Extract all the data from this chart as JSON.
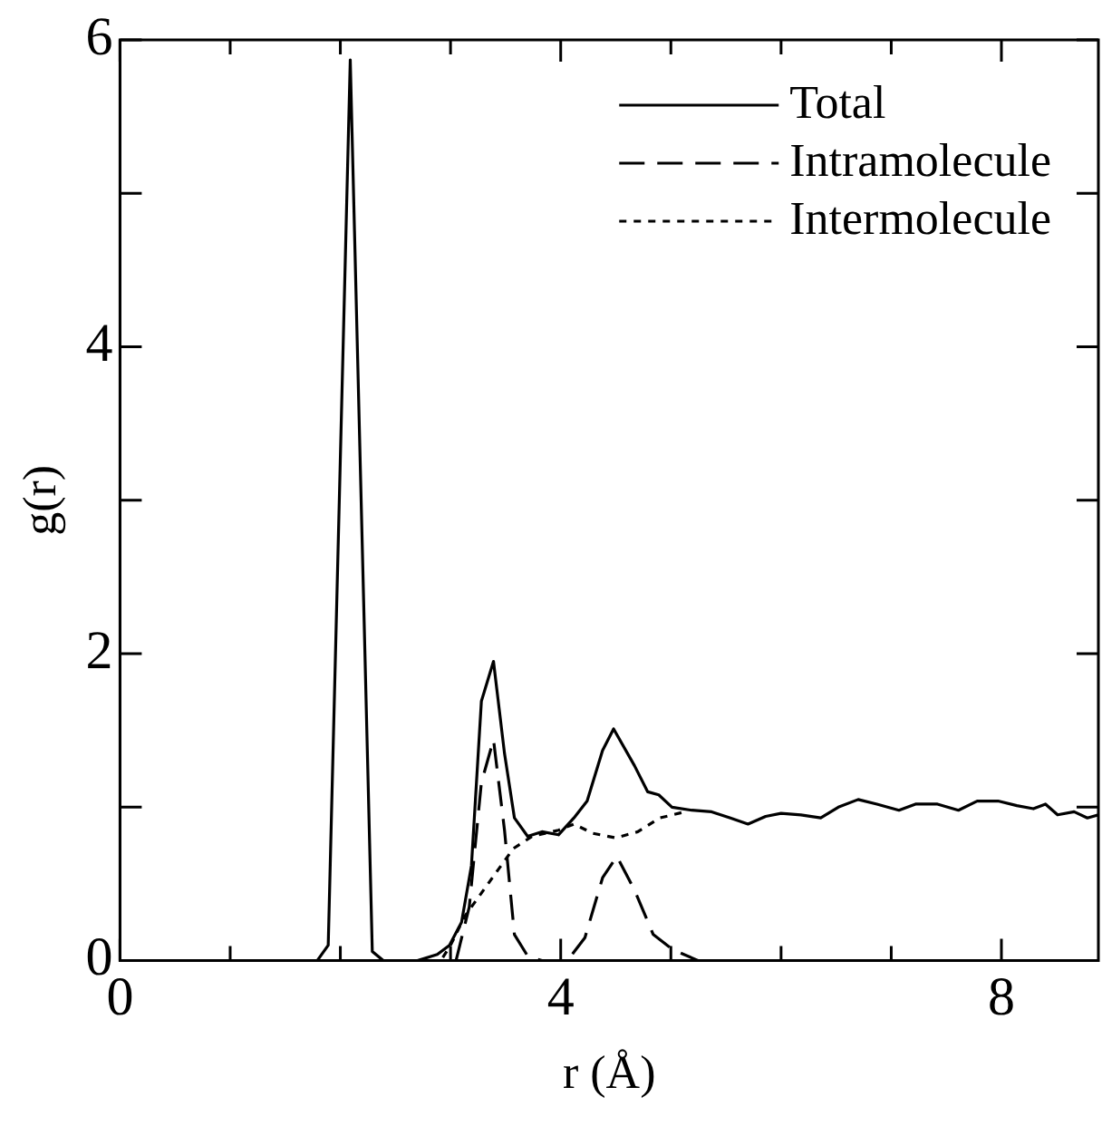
{
  "chart_data": {
    "type": "line",
    "xlabel": "r (Å)",
    "ylabel": "g(r)",
    "xlim": [
      0,
      8.88
    ],
    "ylim": [
      0,
      6
    ],
    "xticks": [
      0,
      {
        "value": 1,
        "label": null
      },
      {
        "value": 2,
        "label": null
      },
      {
        "value": 3,
        "label": null
      },
      4,
      {
        "value": 5,
        "label": null
      },
      {
        "value": 6,
        "label": null
      },
      {
        "value": 7,
        "label": null
      },
      8
    ],
    "yticks": [
      0,
      {
        "value": 1,
        "label": null
      },
      2,
      {
        "value": 3,
        "label": null
      },
      4,
      {
        "value": 5,
        "label": null
      },
      6
    ],
    "legend": "top right",
    "marker": "none",
    "grid": false,
    "series": [
      {
        "name": "Total",
        "color": "#000000",
        "line_style": "solid",
        "x": [
          0,
          1.79,
          1.89,
          2.09,
          2.29,
          2.39,
          2.7,
          2.88,
          2.99,
          3.1,
          3.19,
          3.28,
          3.39,
          3.49,
          3.58,
          3.7,
          3.83,
          3.98,
          4.12,
          4.24,
          4.38,
          4.48,
          4.67,
          4.79,
          4.89,
          5.01,
          5.19,
          5.37,
          5.54,
          5.7,
          5.86,
          6.0,
          6.18,
          6.36,
          6.52,
          6.7,
          6.87,
          7.07,
          7.22,
          7.42,
          7.61,
          7.78,
          7.97,
          8.14,
          8.29,
          8.4,
          8.51,
          8.66,
          8.78,
          8.88
        ],
        "values": [
          0,
          0,
          0.1,
          5.87,
          0.06,
          0,
          0,
          0.04,
          0.1,
          0.25,
          0.62,
          1.69,
          1.95,
          1.35,
          0.93,
          0.81,
          0.84,
          0.82,
          0.93,
          1.04,
          1.37,
          1.51,
          1.27,
          1.1,
          1.08,
          1.0,
          0.98,
          0.97,
          0.93,
          0.89,
          0.94,
          0.96,
          0.95,
          0.93,
          1.0,
          1.05,
          1.02,
          0.98,
          1.02,
          1.02,
          0.98,
          1.04,
          1.04,
          1.01,
          0.99,
          1.02,
          0.95,
          0.97,
          0.93,
          0.95
        ]
      },
      {
        "name": "Intramolecule",
        "color": "#000000",
        "line_style": "dashed",
        "x": [
          3.05,
          3.17,
          3.28,
          3.39,
          3.49,
          3.58,
          3.7,
          3.83,
          4.06,
          4.22,
          4.38,
          4.51,
          4.67,
          4.84,
          5.02,
          5.25,
          5.5
        ],
        "values": [
          0,
          0.35,
          1.16,
          1.44,
          0.85,
          0.17,
          0.03,
          0,
          0,
          0.15,
          0.54,
          0.68,
          0.46,
          0.17,
          0.07,
          0,
          0
        ]
      },
      {
        "name": "Intermolecule",
        "color": "#000000",
        "line_style": "dotted",
        "x": [
          2.93,
          3.0,
          3.13,
          3.28,
          3.42,
          3.57,
          3.74,
          3.98,
          4.12,
          4.29,
          4.5,
          4.7,
          4.9,
          5.13
        ],
        "values": [
          0.02,
          0.1,
          0.29,
          0.44,
          0.58,
          0.73,
          0.81,
          0.85,
          0.89,
          0.83,
          0.8,
          0.84,
          0.93,
          0.97
        ]
      }
    ]
  }
}
